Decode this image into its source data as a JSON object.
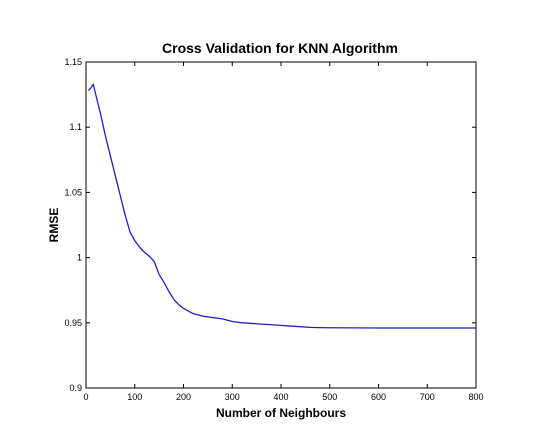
{
  "chart_data": {
    "type": "line",
    "title": "Cross Validation for KNN Algorithm",
    "xlabel": "Number of Neighbours",
    "ylabel": "RMSE",
    "xlim": [
      0,
      800
    ],
    "ylim": [
      0.9,
      1.15
    ],
    "xticks": [
      0,
      100,
      200,
      300,
      400,
      500,
      600,
      700,
      800
    ],
    "yticks": [
      0.9,
      0.95,
      1,
      1.05,
      1.1,
      1.15
    ],
    "xtick_labels": [
      "0",
      "100",
      "200",
      "300",
      "400",
      "500",
      "600",
      "700",
      "800"
    ],
    "ytick_labels": [
      "0.9",
      "0.95",
      "1",
      "1.05",
      "1.1",
      "1.15"
    ],
    "grid": false,
    "series": [
      {
        "color": "#1f1fcc",
        "x": [
          5,
          10,
          15,
          20,
          30,
          40,
          50,
          60,
          70,
          80,
          90,
          100,
          110,
          120,
          130,
          140,
          150,
          160,
          170,
          180,
          190,
          200,
          220,
          240,
          260,
          280,
          300,
          320,
          340,
          360,
          380,
          400,
          420,
          440,
          460,
          480,
          500,
          550,
          600,
          700,
          800
        ],
        "y": [
          1.128,
          1.13,
          1.133,
          1.125,
          1.11,
          1.093,
          1.078,
          1.063,
          1.048,
          1.033,
          1.02,
          1.013,
          1.008,
          1.004,
          1.001,
          0.997,
          0.987,
          0.981,
          0.974,
          0.968,
          0.964,
          0.961,
          0.957,
          0.955,
          0.954,
          0.953,
          0.951,
          0.95,
          0.9495,
          0.949,
          0.9485,
          0.948,
          0.9475,
          0.947,
          0.9465,
          0.9463,
          0.9462,
          0.9461,
          0.946,
          0.946,
          0.946
        ]
      }
    ]
  }
}
